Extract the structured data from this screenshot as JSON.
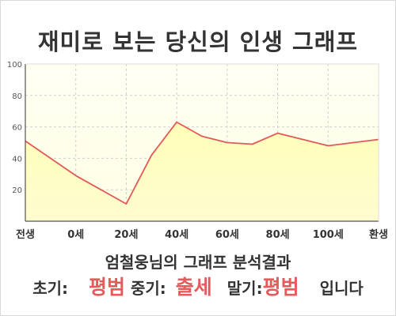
{
  "title": "재미로 보는 당신의 인생 그래프",
  "caption": "엄철웅님의 그래프 분석결과",
  "summary": {
    "early_label": "초기:",
    "early_value": "평범",
    "middle_label": "중기:",
    "middle_value": "출세",
    "late_label": "말기:",
    "late_value": "평범",
    "suffix": "입니다"
  },
  "colors": {
    "line": "#e05a5a",
    "fill": "#ffffc0",
    "highlight": "#e45b5b",
    "text": "#333333"
  },
  "chart_data": {
    "type": "area",
    "title": "재미로 보는 당신의 인생 그래프",
    "xlabel": "",
    "ylabel": "",
    "x_ticks": [
      {
        "label": "전생",
        "x": -20
      },
      {
        "label": "0세",
        "x": 0
      },
      {
        "label": "20세",
        "x": 20
      },
      {
        "label": "40세",
        "x": 40
      },
      {
        "label": "60세",
        "x": 60
      },
      {
        "label": "80세",
        "x": 80
      },
      {
        "label": "100세",
        "x": 100
      },
      {
        "label": "환생",
        "x": 120
      }
    ],
    "xlim": [
      -20,
      120
    ],
    "y_ticks": [
      20,
      40,
      60,
      80,
      100
    ],
    "ylim": [
      0,
      100
    ],
    "grid": true,
    "points": [
      {
        "x": -20,
        "y": 51
      },
      {
        "x": 0,
        "y": 29
      },
      {
        "x": 20,
        "y": 11
      },
      {
        "x": 30,
        "y": 42
      },
      {
        "x": 40,
        "y": 63
      },
      {
        "x": 50,
        "y": 54
      },
      {
        "x": 60,
        "y": 50
      },
      {
        "x": 70,
        "y": 49
      },
      {
        "x": 80,
        "y": 56
      },
      {
        "x": 100,
        "y": 48
      },
      {
        "x": 120,
        "y": 52
      }
    ]
  }
}
